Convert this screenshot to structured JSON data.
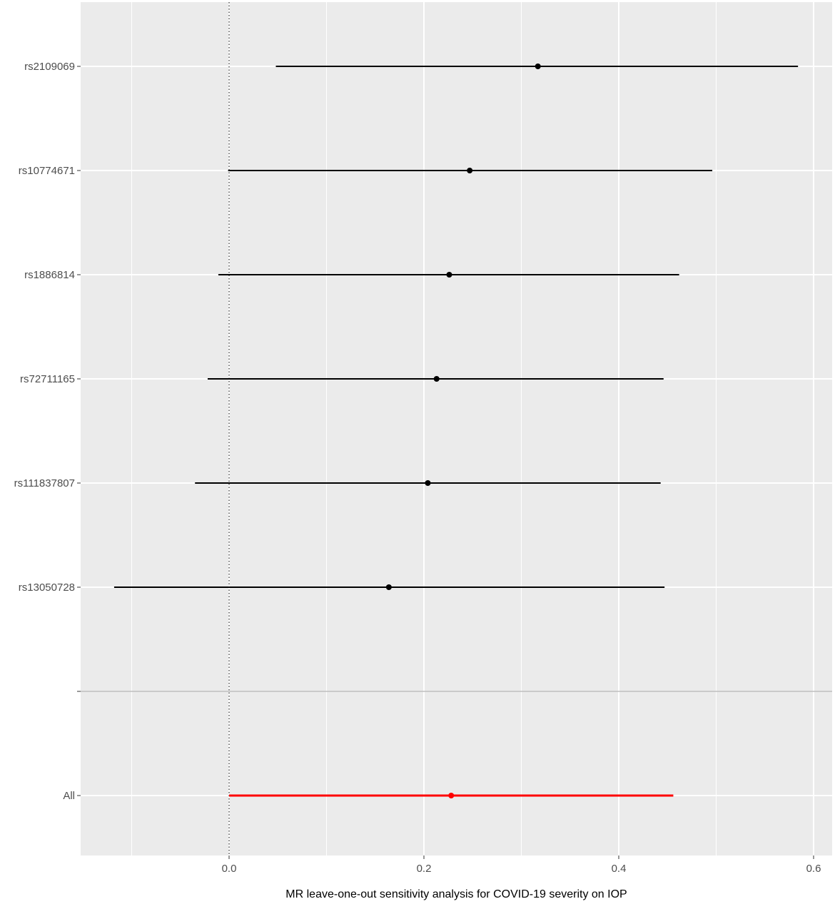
{
  "chart_data": {
    "type": "forest",
    "xlabel": "MR leave-one-out sensitivity analysis for COVID-19 severity on IOP",
    "ylabel": "",
    "xlim": [
      -0.15,
      0.61
    ],
    "x_ticks": [
      0.0,
      0.2,
      0.4,
      0.6
    ],
    "x_tick_labels": [
      "0.0",
      "0.2",
      "0.4",
      "0.6"
    ],
    "reference_line": 0.0,
    "grid": true,
    "rows": [
      {
        "label": "rs2109069",
        "estimate": 0.317,
        "lower": 0.048,
        "upper": 0.584,
        "color": "#000000"
      },
      {
        "label": "rs10774671",
        "estimate": 0.247,
        "lower": -0.001,
        "upper": 0.496,
        "color": "#000000"
      },
      {
        "label": "rs1886814",
        "estimate": 0.226,
        "lower": -0.011,
        "upper": 0.462,
        "color": "#000000"
      },
      {
        "label": "rs72711165",
        "estimate": 0.213,
        "lower": -0.022,
        "upper": 0.446,
        "color": "#000000"
      },
      {
        "label": "rs111837807",
        "estimate": 0.204,
        "lower": -0.035,
        "upper": 0.443,
        "color": "#000000"
      },
      {
        "label": "rs13050728",
        "estimate": 0.164,
        "lower": -0.118,
        "upper": 0.447,
        "color": "#000000"
      },
      {
        "label": "",
        "separator": true
      },
      {
        "label": "All",
        "estimate": 0.228,
        "lower": 0.0,
        "upper": 0.456,
        "color": "#ff0000"
      }
    ],
    "colors": {
      "panel_background": "#ebebeb",
      "grid_line": "#ffffff",
      "separator_line": "#bfbfbf",
      "estimate": "#000000",
      "overall_estimate": "#ff0000"
    }
  }
}
